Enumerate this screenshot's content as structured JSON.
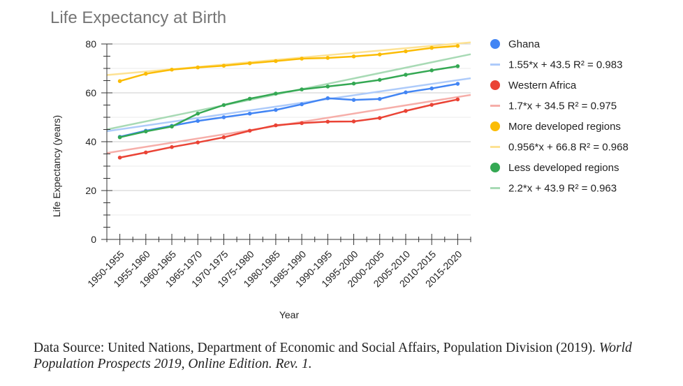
{
  "chart_data": {
    "type": "line",
    "title": "Life Expectancy at Birth",
    "xlabel": "Year",
    "ylabel": "Life Expectancy (years)",
    "ylim": [
      0,
      80
    ],
    "yticks": [
      "0",
      "20",
      "40",
      "60",
      "80"
    ],
    "grid": true,
    "legend_position": "right",
    "categories": [
      "1950-1955",
      "1955-1960",
      "1960-1965",
      "1965-1970",
      "1970-1975",
      "1975-1980",
      "1980-1985",
      "1985-1990",
      "1990-1995",
      "1995-2000",
      "2000-2005",
      "2005-2010",
      "2010-2015",
      "2015-2020"
    ],
    "series": [
      {
        "name": "Ghana",
        "color": "#4285f4",
        "values": [
          42.0,
          44.5,
          46.5,
          48.5,
          50.0,
          51.5,
          53.0,
          55.3,
          57.8,
          57.1,
          57.5,
          60.2,
          61.8,
          63.7
        ],
        "trendline": {
          "label": "1.55*x + 43.5 R² = 0.983",
          "slope": 1.55,
          "intercept": 43.5,
          "color": "#aecbfa"
        }
      },
      {
        "name": "Western Africa",
        "color": "#ea4335",
        "values": [
          33.5,
          35.6,
          37.8,
          39.7,
          41.8,
          44.5,
          46.7,
          47.6,
          48.2,
          48.3,
          49.7,
          52.6,
          55.1,
          57.3
        ],
        "trendline": {
          "label": "1.7*x + 34.5 R² = 0.975",
          "slope": 1.7,
          "intercept": 34.5,
          "color": "#f6aea9"
        }
      },
      {
        "name": "More developed regions",
        "color": "#fbbc04",
        "values": [
          64.8,
          67.8,
          69.5,
          70.4,
          71.1,
          72.1,
          73.0,
          74.0,
          74.3,
          74.9,
          75.7,
          77.0,
          78.4,
          79.2
        ],
        "trendline": {
          "label": "0.956*x + 66.8 R² = 0.968",
          "slope": 0.956,
          "intercept": 66.8,
          "color": "#fde293"
        }
      },
      {
        "name": "Less developed regions",
        "color": "#34a853",
        "values": [
          41.8,
          44.2,
          46.2,
          51.5,
          55.0,
          57.6,
          59.7,
          61.4,
          62.6,
          63.8,
          65.3,
          67.4,
          69.2,
          70.9
        ],
        "trendline": {
          "label": "2.2*x + 43.9 R² = 0.963",
          "slope": 2.2,
          "intercept": 43.9,
          "color": "#a8dab5"
        }
      }
    ]
  },
  "source": {
    "prefix": "Data Source: United Nations, Department of Economic and Social Affairs, Population Division (2019). ",
    "title": "World Population Prospects 2019, Online Edition. Rev. 1."
  }
}
